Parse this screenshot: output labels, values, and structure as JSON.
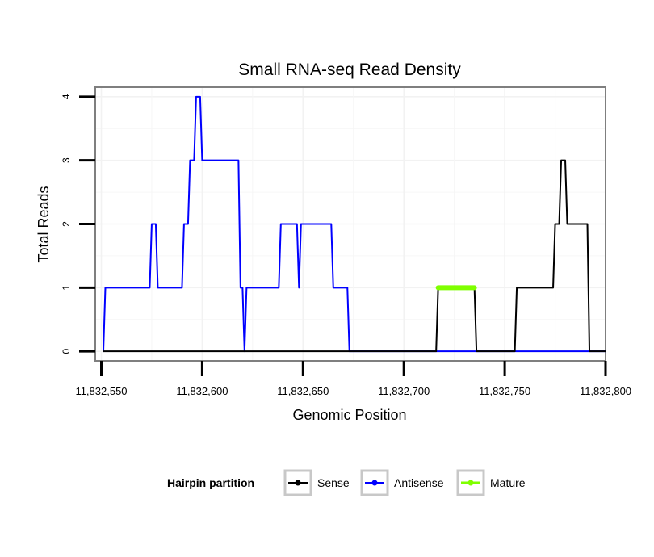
{
  "chart_data": {
    "type": "line",
    "title": "Small RNA-seq Read Density",
    "xlabel": "Genomic Position",
    "ylabel": "Total Reads",
    "xlim": [
      11832547,
      11832800
    ],
    "ylim": [
      -0.15,
      4.15
    ],
    "xticks": [
      11832550,
      11832600,
      11832650,
      11832700,
      11832750,
      11832800
    ],
    "xtick_labels": [
      "11,832,550",
      "11,832,600",
      "11,832,650",
      "11,832,700",
      "11,832,750",
      "11,832,800"
    ],
    "yticks": [
      0,
      1,
      2,
      3,
      4
    ],
    "ytick_labels": [
      "0",
      "1",
      "2",
      "3",
      "4"
    ],
    "grid": true,
    "legend": {
      "title": "Hairpin partition",
      "position": "bottom",
      "entries": [
        "Sense",
        "Antisense",
        "Mature"
      ]
    },
    "series": [
      {
        "name": "Antisense",
        "color": "#0000ff",
        "x": [
          11832551,
          11832552,
          11832574,
          11832575,
          11832577,
          11832578,
          11832590,
          11832591,
          11832593,
          11832594,
          11832596,
          11832597,
          11832599,
          11832600,
          11832618,
          11832619,
          11832620,
          11832621,
          11832622,
          11832638,
          11832639,
          11832647,
          11832648,
          11832649,
          11832664,
          11832665,
          11832672,
          11832673,
          11832800
        ],
        "values": [
          0,
          1,
          1,
          2,
          2,
          1,
          1,
          2,
          2,
          3,
          3,
          4,
          4,
          3,
          3,
          1,
          1,
          0,
          1,
          1,
          2,
          2,
          1,
          2,
          2,
          1,
          1,
          0,
          0
        ]
      },
      {
        "name": "Sense",
        "color": "#000000",
        "x": [
          11832551,
          11832716,
          11832717,
          11832735,
          11832736,
          11832755,
          11832756,
          11832774,
          11832775,
          11832777,
          11832778,
          11832780,
          11832781,
          11832791,
          11832792,
          11832800
        ],
        "values": [
          0,
          0,
          1,
          1,
          0,
          0,
          1,
          1,
          2,
          2,
          3,
          3,
          2,
          2,
          0,
          0
        ]
      },
      {
        "name": "Mature",
        "color": "#7fff00",
        "x": [
          11832717,
          11832735
        ],
        "values": [
          1,
          1
        ]
      }
    ]
  }
}
